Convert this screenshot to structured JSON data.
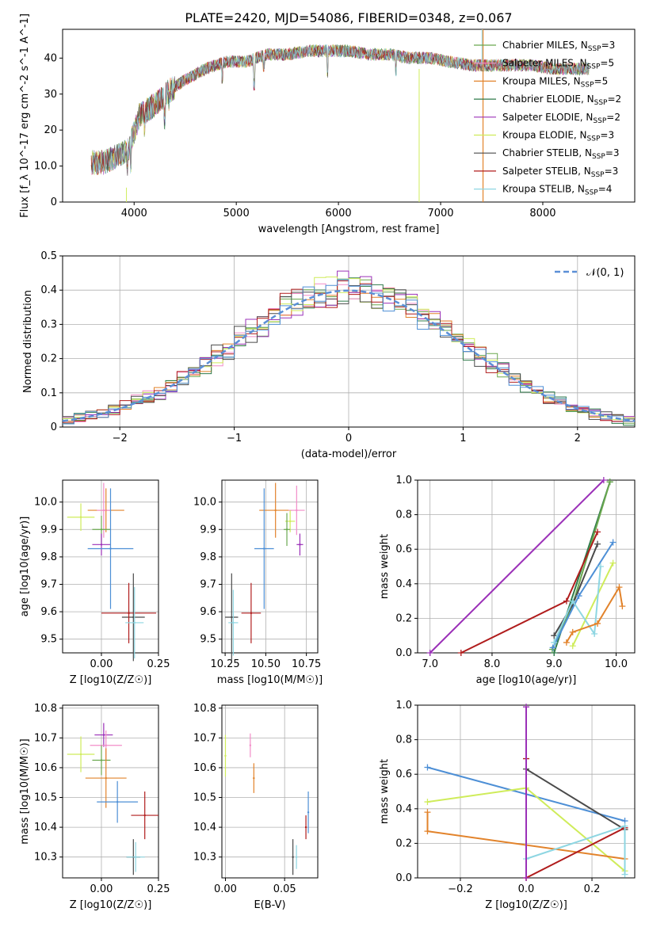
{
  "figure_title": "PLATE=2420, MJD=54086, FIBERID=0348, z=0.067",
  "colors": {
    "Chabrier MILES": "#6aa84f",
    "Salpeter MILES": "#f28cc8",
    "Kroupa MILES": "#e2832b",
    "Chabrier ELODIE": "#2f7a4a",
    "Salpeter ELODIE": "#9b30b8",
    "Kroupa ELODIE": "#cfec5a",
    "Chabrier STELIB": "#4a4a4a",
    "Salpeter STELIB": "#b01c1c",
    "Kroupa STELIB": "#8ed6e2",
    "line_main": "#4d8fd6"
  },
  "chart_data": [
    {
      "id": "spectrum",
      "type": "line",
      "xlabel": "wavelength [Angstrom, rest frame]",
      "ylabel": "Flux [f_λ 10^-17 erg cm^-2 s^-1 A^-1]",
      "xlim": [
        3300,
        8900
      ],
      "ylim": [
        0,
        48
      ],
      "xticks": [
        4000,
        5000,
        6000,
        7000,
        8000
      ],
      "yticks": [
        0,
        10,
        20,
        30,
        40
      ],
      "legend_position": "top-right",
      "legend": [
        {
          "name": "Chabrier MILES",
          "label": "Chabrier MILES, N",
          "sub": "SSP",
          "suffix": "=3"
        },
        {
          "name": "Salpeter MILES",
          "label": "Salpeter MILES, N",
          "sub": "SSP",
          "suffix": "=5"
        },
        {
          "name": "Kroupa MILES",
          "label": "Kroupa MILES, N",
          "sub": "SSP",
          "suffix": "=5"
        },
        {
          "name": "Chabrier ELODIE",
          "label": "Chabrier ELODIE, N",
          "sub": "SSP",
          "suffix": "=2"
        },
        {
          "name": "Salpeter ELODIE",
          "label": "Salpeter ELODIE, N",
          "sub": "SSP",
          "suffix": "=2"
        },
        {
          "name": "Kroupa ELODIE",
          "label": "Kroupa ELODIE, N",
          "sub": "SSP",
          "suffix": "=3"
        },
        {
          "name": "Chabrier STELIB",
          "label": "Chabrier STELIB, N",
          "sub": "SSP",
          "suffix": "=3"
        },
        {
          "name": "Salpeter STELIB",
          "label": "Salpeter STELIB, N",
          "sub": "SSP",
          "suffix": "=3"
        },
        {
          "name": "Kroupa STELIB",
          "label": "Kroupa STELIB, N",
          "sub": "SSP",
          "suffix": "=4"
        }
      ],
      "continuum": [
        [
          3580,
          11
        ],
        [
          3700,
          11
        ],
        [
          3850,
          13
        ],
        [
          3950,
          15
        ],
        [
          4050,
          24
        ],
        [
          4200,
          27
        ],
        [
          4350,
          31
        ],
        [
          4500,
          34
        ],
        [
          4700,
          37
        ],
        [
          4900,
          39
        ],
        [
          5100,
          39
        ],
        [
          5300,
          41
        ],
        [
          5500,
          41
        ],
        [
          5700,
          42
        ],
        [
          5900,
          42
        ],
        [
          6100,
          42
        ],
        [
          6300,
          41
        ],
        [
          6500,
          41
        ],
        [
          6700,
          40
        ],
        [
          6900,
          40
        ],
        [
          7100,
          39
        ],
        [
          7300,
          38
        ],
        [
          7500,
          38
        ],
        [
          7700,
          38
        ],
        [
          7900,
          38
        ],
        [
          8100,
          37
        ],
        [
          8300,
          37
        ],
        [
          8450,
          37
        ]
      ],
      "features": [
        [
          3934,
          4
        ],
        [
          3968,
          5
        ],
        [
          4102,
          4
        ],
        [
          4300,
          6
        ],
        [
          4341,
          3
        ],
        [
          4861,
          4
        ],
        [
          5175,
          7
        ],
        [
          5270,
          3
        ],
        [
          5893,
          6
        ],
        [
          6563,
          4
        ]
      ]
    },
    {
      "id": "residuals",
      "type": "bar",
      "xlabel": "(data-model)/error",
      "ylabel": "Normed distribution",
      "xlim": [
        -2.5,
        2.5
      ],
      "ylim": [
        0,
        0.5
      ],
      "xticks": [
        -2,
        -1,
        0,
        1,
        2
      ],
      "yticks": [
        0.0,
        0.1,
        0.2,
        0.3,
        0.4,
        0.5
      ],
      "legend_position": "top-right",
      "legend": [
        "𝒩(0, 1)"
      ],
      "bin_width": 0.1
    },
    {
      "id": "age_vs_Z",
      "type": "scatter",
      "xlabel": "Z [log10(Z/Z☉)]",
      "ylabel": "age [log10(age/yr)]",
      "xlim": [
        -0.17,
        0.25
      ],
      "ylim": [
        9.45,
        10.08
      ],
      "xticks": [
        0.0,
        0.25
      ],
      "yticks": [
        9.5,
        9.6,
        9.7,
        9.8,
        9.9,
        10.0
      ],
      "points": [
        {
          "series": "Kroupa MILES",
          "x": 0.02,
          "y": 9.97,
          "xerr": 0.08,
          "yerr": 0.08
        },
        {
          "series": "Salpeter MILES",
          "x": 0.01,
          "y": 9.97,
          "xerr": 0.03,
          "yerr": 0.1
        },
        {
          "series": "Kroupa ELODIE",
          "x": -0.09,
          "y": 9.945,
          "xerr": 0.06,
          "yerr": 0.05
        },
        {
          "series": "Chabrier MILES",
          "x": 0.0,
          "y": 9.9,
          "xerr": 0.04,
          "yerr": 0.05
        },
        {
          "series": "Salpeter ELODIE",
          "x": 0.0,
          "y": 9.845,
          "xerr": 0.04,
          "yerr": 0.04
        },
        {
          "series": "line_main",
          "x": 0.04,
          "y": 9.83,
          "xerr": 0.1,
          "yerr": 0.22
        },
        {
          "series": "Chabrier STELIB",
          "x": 0.14,
          "y": 9.58,
          "xerr": 0.05,
          "yerr": 0.16
        },
        {
          "series": "Salpeter STELIB",
          "x": 0.12,
          "y": 9.595,
          "xerr": 0.12,
          "yerr": 0.11
        },
        {
          "series": "Kroupa STELIB",
          "x": 0.145,
          "y": 9.56,
          "xerr": 0.04,
          "yerr": 0.13
        }
      ]
    },
    {
      "id": "age_vs_mass",
      "type": "scatter",
      "xlabel": "mass [log10(M/M☉)]",
      "ylabel": "",
      "xlim": [
        10.23,
        10.82
      ],
      "ylim": [
        9.45,
        10.08
      ],
      "xticks": [
        10.25,
        10.5,
        10.75
      ],
      "yticks": [
        9.5,
        9.6,
        9.7,
        9.8,
        9.9,
        10.0
      ],
      "points": [
        {
          "series": "Kroupa MILES",
          "x": 10.56,
          "y": 9.97,
          "xerr": 0.1,
          "yerr": 0.1
        },
        {
          "series": "Salpeter MILES",
          "x": 10.69,
          "y": 9.97,
          "xerr": 0.05,
          "yerr": 0.09
        },
        {
          "series": "Kroupa ELODIE",
          "x": 10.65,
          "y": 9.93,
          "xerr": 0.03,
          "yerr": 0.04
        },
        {
          "series": "Chabrier MILES",
          "x": 10.63,
          "y": 9.9,
          "xerr": 0.02,
          "yerr": 0.06
        },
        {
          "series": "Salpeter ELODIE",
          "x": 10.71,
          "y": 9.845,
          "xerr": 0.02,
          "yerr": 0.04
        },
        {
          "series": "line_main",
          "x": 10.49,
          "y": 9.83,
          "xerr": 0.06,
          "yerr": 0.22
        },
        {
          "series": "Chabrier STELIB",
          "x": 10.29,
          "y": 9.58,
          "xerr": 0.04,
          "yerr": 0.16
        },
        {
          "series": "Salpeter STELIB",
          "x": 10.41,
          "y": 9.595,
          "xerr": 0.06,
          "yerr": 0.11
        },
        {
          "series": "Kroupa STELIB",
          "x": 10.3,
          "y": 9.56,
          "xerr": 0.03,
          "yerr": 0.12
        }
      ]
    },
    {
      "id": "weight_vs_age",
      "type": "line",
      "xlabel": "age [log10(age/yr)]",
      "ylabel": "mass weight",
      "xlim": [
        6.8,
        10.3
      ],
      "ylim": [
        0,
        1.0
      ],
      "xticks": [
        7,
        8,
        9,
        10
      ],
      "yticks": [
        0.0,
        0.2,
        0.4,
        0.6,
        0.8,
        1.0
      ],
      "series": [
        {
          "series": "Salpeter ELODIE",
          "points": [
            [
              7.0,
              0.0
            ],
            [
              9.8,
              1.0
            ]
          ]
        },
        {
          "series": "Chabrier ELODIE",
          "points": [
            [
              9.0,
              0.0
            ],
            [
              9.9,
              0.99
            ]
          ]
        },
        {
          "series": "Chabrier MILES",
          "points": [
            [
              8.97,
              0.02
            ],
            [
              9.3,
              0.28
            ],
            [
              9.9,
              0.99
            ]
          ]
        },
        {
          "series": "Salpeter STELIB",
          "points": [
            [
              7.5,
              0.0
            ],
            [
              9.2,
              0.3
            ],
            [
              9.7,
              0.7
            ]
          ]
        },
        {
          "series": "Chabrier STELIB",
          "points": [
            [
              9.0,
              0.1
            ],
            [
              9.3,
              0.28
            ],
            [
              9.7,
              0.63
            ]
          ]
        },
        {
          "series": "line_main",
          "points": [
            [
              8.98,
              0.03
            ],
            [
              9.4,
              0.33
            ],
            [
              9.95,
              0.64
            ]
          ]
        },
        {
          "series": "Kroupa ELODIE",
          "points": [
            [
              9.3,
              0.04
            ],
            [
              9.95,
              0.52
            ]
          ]
        },
        {
          "series": "Kroupa STELIB",
          "points": [
            [
              9.0,
              0.06
            ],
            [
              9.3,
              0.3
            ],
            [
              9.65,
              0.11
            ],
            [
              9.75,
              0.5
            ]
          ]
        },
        {
          "series": "Kroupa MILES",
          "points": [
            [
              9.2,
              0.06
            ],
            [
              9.3,
              0.12
            ],
            [
              9.7,
              0.17
            ],
            [
              10.05,
              0.38
            ],
            [
              10.1,
              0.27
            ]
          ]
        }
      ]
    },
    {
      "id": "mass_vs_Z",
      "type": "scatter",
      "xlabel": "Z [log10(Z/Z☉)]",
      "ylabel": "mass [log10(M/M☉)]",
      "xlim": [
        -0.17,
        0.25
      ],
      "ylim": [
        10.23,
        10.81
      ],
      "xticks": [
        0.0,
        0.25
      ],
      "yticks": [
        10.3,
        10.4,
        10.5,
        10.6,
        10.7,
        10.8
      ],
      "points": [
        {
          "series": "Salpeter ELODIE",
          "x": 0.01,
          "y": 10.71,
          "xerr": 0.04,
          "yerr": 0.04
        },
        {
          "series": "Salpeter MILES",
          "x": 0.02,
          "y": 10.675,
          "xerr": 0.07,
          "yerr": 0.05
        },
        {
          "series": "Kroupa ELODIE",
          "x": -0.09,
          "y": 10.645,
          "xerr": 0.06,
          "yerr": 0.06
        },
        {
          "series": "Chabrier MILES",
          "x": 0.0,
          "y": 10.625,
          "xerr": 0.04,
          "yerr": 0.05
        },
        {
          "series": "Kroupa MILES",
          "x": 0.02,
          "y": 10.565,
          "xerr": 0.09,
          "yerr": 0.1
        },
        {
          "series": "line_main",
          "x": 0.07,
          "y": 10.485,
          "xerr": 0.09,
          "yerr": 0.07
        },
        {
          "series": "Salpeter STELIB",
          "x": 0.19,
          "y": 10.44,
          "xerr": 0.06,
          "yerr": 0.08
        },
        {
          "series": "Chabrier STELIB",
          "x": 0.14,
          "y": 10.3,
          "xerr": 0.03,
          "yerr": 0.06
        },
        {
          "series": "Kroupa STELIB",
          "x": 0.15,
          "y": 10.3,
          "xerr": 0.04,
          "yerr": 0.05
        }
      ]
    },
    {
      "id": "mass_vs_ebv",
      "type": "scatter",
      "xlabel": "E(B-V)",
      "ylabel": "",
      "xlim": [
        -0.003,
        0.078
      ],
      "ylim": [
        10.23,
        10.81
      ],
      "xticks": [
        0.0,
        0.05
      ],
      "yticks": [
        10.3,
        10.4,
        10.5,
        10.6,
        10.7,
        10.8
      ],
      "points": [
        {
          "series": "Salpeter MILES",
          "x": 0.021,
          "y": 10.675,
          "yerr": 0.04
        },
        {
          "series": "Kroupa ELODIE",
          "x": 0.0,
          "y": 10.64,
          "yerr": 0.07
        },
        {
          "series": "Kroupa MILES",
          "x": 0.024,
          "y": 10.565,
          "yerr": 0.05
        },
        {
          "series": "line_main",
          "x": 0.07,
          "y": 10.45,
          "yerr": 0.07
        },
        {
          "series": "Salpeter STELIB",
          "x": 0.068,
          "y": 10.4,
          "yerr": 0.04
        },
        {
          "series": "Chabrier STELIB",
          "x": 0.057,
          "y": 10.3,
          "yerr": 0.06
        },
        {
          "series": "Kroupa STELIB",
          "x": 0.06,
          "y": 10.3,
          "yerr": 0.04
        }
      ]
    },
    {
      "id": "weight_vs_Z",
      "type": "line",
      "xlabel": "Z [log10(Z/Z☉)]",
      "ylabel": "mass weight",
      "xlim": [
        -0.33,
        0.33
      ],
      "ylim": [
        0,
        1.0
      ],
      "xticks": [
        -0.2,
        0.0,
        0.2
      ],
      "yticks": [
        0.0,
        0.2,
        0.4,
        0.6,
        0.8,
        1.0
      ],
      "series": [
        {
          "series": "line_main",
          "points": [
            [
              -0.3,
              0.64
            ],
            [
              0.3,
              0.33
            ]
          ]
        },
        {
          "series": "Kroupa ELODIE",
          "points": [
            [
              -0.3,
              0.44
            ],
            [
              0.0,
              0.52
            ],
            [
              0.3,
              0.04
            ]
          ]
        },
        {
          "series": "Kroupa MILES",
          "points": [
            [
              -0.3,
              0.38
            ],
            [
              -0.3,
              0.27
            ],
            [
              0.3,
              0.11
            ]
          ]
        },
        {
          "series": "Chabrier STELIB",
          "points": [
            [
              0.0,
              0.63
            ],
            [
              0.3,
              0.28
            ]
          ]
        },
        {
          "series": "Salpeter STELIB",
          "points": [
            [
              0.0,
              0.0
            ],
            [
              0.0,
              0.69
            ],
            [
              0.0,
              0.0
            ],
            [
              0.3,
              0.29
            ]
          ]
        },
        {
          "series": "Kroupa STELIB",
          "points": [
            [
              0.0,
              0.11
            ],
            [
              0.3,
              0.3
            ],
            [
              0.3,
              0.02
            ]
          ]
        },
        {
          "series": "Salpeter ELODIE",
          "points": [
            [
              0.0,
              0.0
            ],
            [
              0.0,
              0.99
            ]
          ]
        }
      ]
    }
  ]
}
